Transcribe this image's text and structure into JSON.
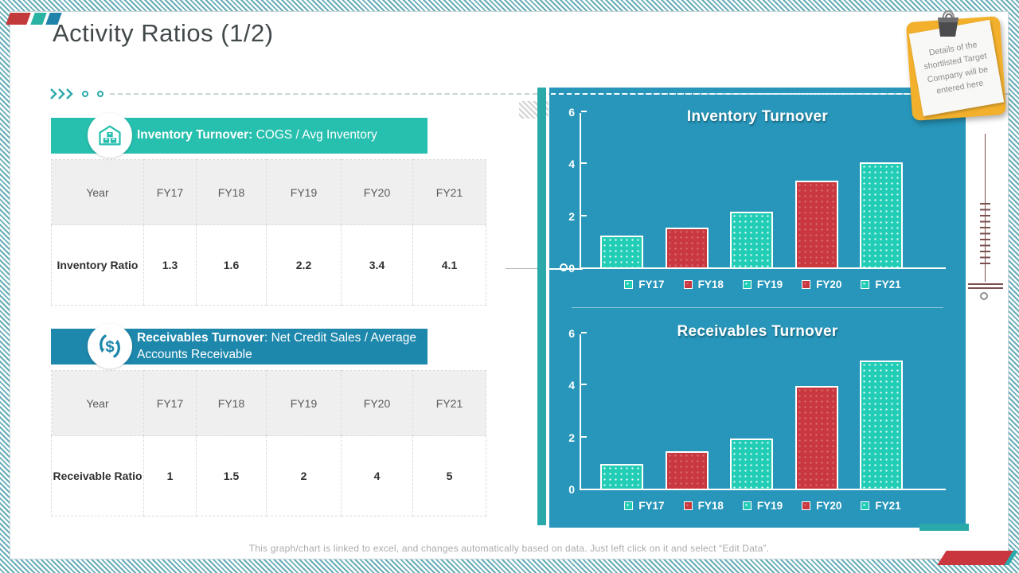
{
  "slide": {
    "title": "Activity Ratios (1/2)",
    "sticky_note_text": "Details of the shortlisted Target Company will be entered here",
    "footer_note": "This graph/chart is linked to excel,  and changes automatically based on data. Just left click on it and select “Edit Data”."
  },
  "colors": {
    "banner_teal": "#27bfae",
    "banner_blue": "#1e87ac",
    "panel_blue": "#2796ba",
    "bar_teal": "#22cdb6",
    "bar_red": "#ca383f",
    "note_yellow": "#f2b02c",
    "accent_red": "#c9363e"
  },
  "tables": [
    {
      "banner_bold": "Inventory Turnover:",
      "banner_rest": " COGS / Avg Inventory",
      "icon": "warehouse-icon",
      "headers": [
        "Year",
        "FY17",
        "FY18",
        "FY19",
        "FY20",
        "FY21"
      ],
      "row_label": "Inventory Ratio",
      "values": [
        "1.3",
        "1.6",
        "2.2",
        "3.4",
        "4.1"
      ]
    },
    {
      "banner_bold": "Receivables Turnover",
      "banner_rest": ": Net Credit Sales / Average Accounts Receivable",
      "icon": "dollar-cycle-icon",
      "headers": [
        "Year",
        "FY17",
        "FY18",
        "FY19",
        "FY20",
        "FY21"
      ],
      "row_label": "Receivable Ratio",
      "values": [
        "1",
        "1.5",
        "2",
        "4",
        "5"
      ]
    }
  ],
  "chart_data": [
    {
      "type": "bar",
      "title": "Inventory Turnover",
      "categories": [
        "FY17",
        "FY18",
        "FY19",
        "FY20",
        "FY21"
      ],
      "values": [
        1.3,
        1.6,
        2.2,
        3.4,
        4.1
      ],
      "bar_colors": [
        "teal",
        "red",
        "teal",
        "red",
        "teal"
      ],
      "xlabel": "",
      "ylabel": "",
      "yticks": [
        0,
        2,
        4,
        6
      ],
      "ylim": [
        0,
        6
      ],
      "grid": false,
      "legend_position": "bottom"
    },
    {
      "type": "bar",
      "title": "Receivables Turnover",
      "categories": [
        "FY17",
        "FY18",
        "FY19",
        "FY20",
        "FY21"
      ],
      "values": [
        1,
        1.5,
        2,
        4,
        5
      ],
      "bar_colors": [
        "teal",
        "red",
        "teal",
        "red",
        "teal"
      ],
      "xlabel": "",
      "ylabel": "",
      "yticks": [
        0,
        2,
        4,
        6
      ],
      "ylim": [
        0,
        6
      ],
      "grid": false,
      "legend_position": "bottom"
    }
  ]
}
